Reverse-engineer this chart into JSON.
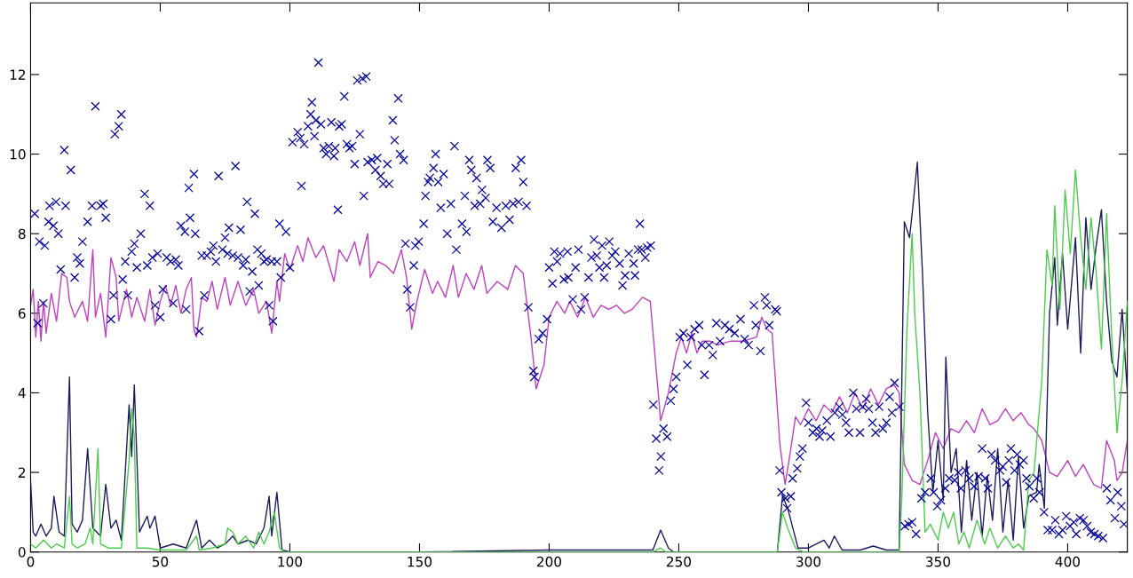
{
  "chart_data": {
    "type": "line",
    "xlim": [
      0,
      423
    ],
    "ylim": [
      0,
      13.8
    ],
    "xticks": [
      0,
      50,
      100,
      150,
      200,
      250,
      300,
      350,
      400
    ],
    "yticks": [
      0,
      2,
      4,
      6,
      8,
      10,
      12
    ],
    "grid": false,
    "series": [
      {
        "type": "line",
        "color": "#bf40bf",
        "marker": "none",
        "x": [
          0,
          1,
          2,
          3,
          4,
          5,
          6,
          8,
          10,
          12,
          14,
          15,
          17,
          20,
          22,
          24,
          25,
          27,
          29,
          31,
          33,
          34,
          37,
          39,
          41,
          44,
          46,
          48,
          50,
          52,
          54,
          56,
          58,
          60,
          62,
          63,
          64,
          66,
          68,
          70,
          72,
          75,
          77,
          80,
          83,
          86,
          88,
          91,
          93,
          95,
          96,
          98,
          100,
          103,
          105,
          107,
          110,
          113,
          117,
          119,
          122,
          125,
          127,
          130,
          131,
          134,
          137,
          140,
          143,
          145,
          147,
          149,
          152,
          155,
          157,
          160,
          163,
          165,
          168,
          171,
          174,
          176,
          180,
          184,
          187,
          190,
          193,
          195,
          198,
          200,
          203,
          206,
          208,
          211,
          214,
          217,
          220,
          223,
          226,
          229,
          232,
          236,
          239,
          243,
          246,
          249,
          251,
          253,
          255,
          257,
          259,
          262,
          265,
          270,
          275,
          280,
          282,
          284,
          286,
          289,
          291,
          293,
          295,
          297,
          300,
          303,
          306,
          309,
          312,
          315,
          318,
          321,
          324,
          327,
          330,
          333,
          335,
          337,
          340,
          343,
          346,
          349,
          352,
          355,
          358,
          361,
          364,
          367,
          370,
          373,
          376,
          379,
          382,
          385,
          387,
          390,
          393,
          396,
          400,
          403,
          406,
          410,
          413,
          415,
          418,
          419,
          421,
          423
        ],
        "values": [
          6.2,
          6.6,
          5.4,
          6.3,
          5.3,
          6.3,
          5.5,
          6.5,
          5.8,
          7.0,
          6.9,
          6.3,
          5.9,
          6.3,
          5.8,
          7.6,
          5.9,
          6.5,
          5.4,
          7.4,
          6.9,
          5.8,
          6.6,
          5.9,
          6.4,
          5.8,
          6.6,
          5.7,
          6.3,
          6.7,
          6.2,
          6.7,
          6.0,
          6.6,
          6.9,
          5.6,
          5.4,
          6.4,
          6.3,
          6.8,
          6.1,
          6.9,
          6.2,
          6.8,
          6.2,
          6.6,
          6.0,
          6.3,
          5.5,
          6.8,
          6.3,
          7.5,
          7.1,
          7.7,
          7.3,
          7.9,
          7.4,
          7.7,
          6.8,
          7.6,
          7.3,
          7.8,
          7.2,
          8.0,
          6.9,
          7.3,
          7.2,
          7.0,
          7.6,
          6.9,
          5.6,
          6.3,
          7.1,
          6.5,
          6.8,
          6.4,
          7.2,
          6.4,
          7.0,
          6.6,
          7.2,
          6.5,
          6.8,
          6.6,
          7.2,
          7.0,
          5.4,
          4.1,
          4.7,
          5.9,
          6.3,
          6.0,
          6.3,
          5.9,
          6.4,
          5.9,
          6.2,
          6.1,
          6.2,
          6.0,
          6.1,
          6.4,
          6.3,
          3.3,
          4.0,
          5.0,
          5.4,
          5.0,
          5.5,
          5.0,
          5.3,
          5.3,
          5.2,
          5.3,
          5.3,
          5.4,
          5.9,
          5.6,
          5.5,
          2.7,
          1.7,
          2.5,
          3.4,
          3.2,
          3.6,
          3.3,
          3.7,
          3.5,
          3.9,
          3.5,
          4.0,
          3.6,
          4.1,
          3.7,
          4.1,
          4.2,
          4.0,
          2.2,
          1.8,
          1.7,
          2.3,
          3.0,
          2.6,
          3.1,
          3.0,
          3.3,
          3.0,
          3.6,
          3.2,
          3.3,
          3.6,
          3.3,
          3.5,
          3.2,
          3.1,
          2.8,
          2.0,
          1.9,
          2.3,
          1.9,
          2.2,
          1.7,
          1.6,
          2.8,
          2.3,
          1.8,
          2.0,
          2.8
        ]
      },
      {
        "type": "line",
        "color": "#1c1c5c",
        "marker": "none",
        "x": [
          0,
          1,
          2,
          4,
          6,
          8,
          9,
          11,
          13,
          15,
          16,
          18,
          20,
          22,
          24,
          27,
          29,
          31,
          33,
          35,
          38,
          39,
          40,
          42,
          45,
          46,
          48,
          50,
          55,
          60,
          64,
          66,
          69,
          72,
          75,
          78,
          80,
          84,
          87,
          90,
          92,
          93,
          95,
          97,
          100,
          150,
          200,
          240,
          243,
          246,
          248,
          288,
          290,
          292,
          294,
          296,
          300,
          306,
          308,
          310,
          313,
          320,
          325,
          330,
          335,
          337,
          339,
          340,
          342,
          344,
          346,
          348,
          350,
          352,
          353,
          355,
          357,
          359,
          361,
          363,
          365,
          367,
          369,
          371,
          373,
          375,
          377,
          379,
          381,
          383,
          385,
          388,
          389,
          391,
          393,
          395,
          396,
          398,
          400,
          403,
          405,
          407,
          409,
          411,
          413,
          415,
          417,
          419,
          421,
          423
        ],
        "values": [
          1.8,
          0.5,
          0.4,
          0.7,
          0.4,
          0.6,
          1.4,
          0.5,
          0.4,
          4.4,
          0.7,
          0.5,
          0.8,
          2.6,
          0.6,
          0.4,
          1.7,
          0.6,
          0.8,
          0.3,
          3.7,
          2.4,
          4.2,
          0.5,
          0.9,
          0.6,
          0.9,
          0.1,
          0.2,
          0.1,
          0.8,
          0.1,
          0.3,
          0.1,
          0.2,
          0.4,
          0.2,
          0.3,
          0.2,
          0.6,
          1.4,
          0.4,
          1.5,
          0.05,
          0,
          0,
          0.05,
          0.05,
          0.55,
          0.1,
          0,
          0,
          1.4,
          1.1,
          0.6,
          0.1,
          0.1,
          0.3,
          0.1,
          0.4,
          0.05,
          0.05,
          0.15,
          0.05,
          0.05,
          8.3,
          7.9,
          8.5,
          9.8,
          7.0,
          3.5,
          1.5,
          2.8,
          1.3,
          4.9,
          2.0,
          2.6,
          0.5,
          2.3,
          0.8,
          2.0,
          0.4,
          1.9,
          0.8,
          2.6,
          0.5,
          1.8,
          0.3,
          2.4,
          0.6,
          1.4,
          1.5,
          2.2,
          1.1,
          6.0,
          7.4,
          5.7,
          7.5,
          5.6,
          7.9,
          5.0,
          8.4,
          6.6,
          7.7,
          8.6,
          6.3,
          4.8,
          4.4,
          6.1,
          4.0
        ]
      },
      {
        "type": "line",
        "color": "#4ccc4c",
        "marker": "none",
        "x": [
          0,
          2,
          5,
          8,
          10,
          13,
          15,
          16,
          18,
          21,
          23,
          24,
          26,
          27,
          30,
          35,
          38,
          39,
          40,
          41,
          45,
          50,
          60,
          64,
          65,
          70,
          75,
          76,
          78,
          80,
          83,
          86,
          88,
          90,
          92,
          94,
          96,
          98,
          150,
          200,
          240,
          243,
          245,
          288,
          290,
          292,
          295,
          298,
          335,
          336,
          338,
          340,
          341,
          343,
          345,
          347,
          350,
          352,
          354,
          356,
          358,
          360,
          362,
          365,
          368,
          370,
          373,
          376,
          379,
          381,
          383,
          385,
          387,
          390,
          392,
          394,
          395,
          397,
          399,
          401,
          403,
          405,
          407,
          409,
          411,
          413,
          415,
          417,
          419,
          421,
          423
        ],
        "values": [
          0.2,
          0.1,
          0.3,
          0.1,
          0.2,
          0.1,
          1.4,
          0.2,
          0.1,
          0.2,
          0.6,
          0.2,
          2.6,
          0.2,
          0.1,
          0.1,
          2.3,
          3.6,
          2.9,
          0.1,
          0.1,
          0.05,
          0.05,
          0.4,
          0.05,
          0.1,
          0.2,
          0.6,
          0.5,
          0.2,
          0.4,
          0.1,
          0.5,
          0.2,
          0.5,
          1.0,
          0.1,
          0,
          0,
          0,
          0,
          0.1,
          0,
          0,
          1.0,
          0.6,
          0.1,
          0,
          0,
          1.3,
          5.6,
          8.0,
          6.0,
          4.0,
          0.5,
          0.7,
          0.3,
          1.0,
          0.6,
          1.0,
          0.2,
          0.5,
          0.1,
          0.8,
          0.2,
          0.6,
          0.1,
          0.4,
          0.1,
          0.2,
          0.05,
          1.8,
          2.0,
          4.3,
          7.6,
          6.7,
          8.7,
          6.1,
          9.1,
          7.5,
          9.6,
          7.9,
          6.6,
          8.4,
          7.0,
          5.1,
          8.5,
          5.4,
          3.0,
          4.3,
          6.3
        ]
      },
      {
        "type": "scatter",
        "color": "#00009c",
        "marker": "cross",
        "x": [
          1.6,
          2.7,
          3.4,
          4.9,
          5.5,
          6.9,
          7.3,
          8.8,
          9.8,
          10.7,
          11.6,
          13,
          13.5,
          15.5,
          17,
          18,
          19,
          20,
          22,
          23.7,
          25,
          27,
          28,
          29,
          31,
          32,
          32.5,
          34,
          35,
          35.5,
          36.5,
          37.5,
          39,
          40,
          41,
          42.5,
          44,
          45,
          46,
          47,
          48,
          49,
          50,
          51,
          52.5,
          54,
          55,
          56,
          57,
          58,
          59.5,
          60,
          61.5,
          61,
          63,
          63.5,
          65,
          66,
          67,
          68,
          69.5,
          70.5,
          71.5,
          72.5,
          74,
          75,
          76,
          76.5,
          78,
          79,
          80,
          81,
          82,
          83,
          83.5,
          84.5,
          85.5,
          86.5,
          87.5,
          88,
          89,
          90,
          91,
          92,
          93,
          93.5,
          95,
          96,
          96.5,
          98.5,
          100,
          101,
          103,
          104,
          104.5,
          105.5,
          107,
          108,
          108.5,
          109.5,
          110,
          111,
          112,
          113,
          114,
          115,
          116,
          117,
          117.5,
          118.5,
          119,
          120,
          121,
          122,
          123,
          124,
          125,
          126,
          127,
          128,
          128.5,
          129.5,
          130,
          131.6,
          133.7,
          133,
          135,
          136,
          137.6,
          138.3,
          139.7,
          140.4,
          141.8,
          142.5,
          143.9,
          144.6,
          145.3,
          146.4,
          147.8,
          148.4,
          149.7,
          151.6,
          152.3,
          153.3,
          154,
          155.4,
          156.2,
          157.2,
          158.2,
          159.3,
          160.7,
          162.1,
          163.5,
          164.2,
          166.4,
          167.5,
          168.1,
          169.2,
          170,
          171.3,
          172,
          173.4,
          174.1,
          175.5,
          176.2,
          177.3,
          178.3,
          179.7,
          181.6,
          183.3,
          184.7,
          186.1,
          187.1,
          188.2,
          189.2,
          190,
          191.3,
          192,
          193.9,
          194.3,
          196,
          197.5,
          199.2,
          200,
          201.3,
          202,
          203.1,
          204.2,
          205.7,
          207.4,
          207.1,
          209.1,
          210.2,
          211.3,
          212.3,
          213.7,
          215.2,
          216.3,
          217.3,
          218.4,
          219.4,
          220.4,
          221.2,
          222.2,
          223.2,
          224.3,
          225.5,
          227.2,
          228.3,
          229.3,
          230.7,
          232.6,
          233.1,
          234.3,
          235,
          235.7,
          237.1,
          237.8,
          239.2,
          240.2,
          241.3,
          242.4,
          243.1,
          244.1,
          245.5,
          246.9,
          248,
          249,
          250.4,
          251.8,
          253.3,
          254.7,
          256.1,
          257.9,
          258.9,
          259.9,
          261.7,
          263.1,
          264.5,
          265.9,
          267.8,
          269.5,
          271.6,
          273.8,
          275.4,
          276.9,
          279,
          279.7,
          281.5,
          283.2,
          283.9,
          284.9,
          287.2,
          287.8,
          288.9,
          289.6,
          291.1,
          291.8,
          293.2,
          293.9,
          295.7,
          296.7,
          297.7,
          299.1,
          300,
          301.7,
          303.1,
          304.3,
          305.3,
          307.1,
          308.5,
          310.2,
          311.9,
          313.1,
          314.5,
          315.6,
          317.3,
          318.5,
          319.9,
          320.9,
          322.3,
          323.3,
          324.7,
          325.9,
          327.3,
          328.7,
          330.1,
          331.3,
          332.2,
          333.2,
          335.1,
          337.2,
          338.6,
          340,
          341.5,
          343.6,
          345,
          347.2,
          348.3,
          349.7,
          351.1,
          352.8,
          354.3,
          356.4,
          357.8,
          358.8,
          360.6,
          362.1,
          363.9,
          365.6,
          367,
          368.2,
          369.2,
          370.6,
          372,
          373.9,
          374.9,
          376.3,
          377.3,
          378.1,
          379.5,
          380.5,
          381.5,
          383,
          384.1,
          385.2,
          386.9,
          388.1,
          389.1,
          390.9,
          392.3,
          394,
          395.2,
          396.6,
          398,
          399.4,
          400.9,
          402.3,
          403.3,
          404.7,
          406.1,
          407.5,
          408.9,
          410.3,
          411.8,
          413.6,
          415.1,
          416.5,
          418.2,
          419.3,
          420.7,
          421.7
        ],
        "values": [
          8.5,
          5.75,
          7.8,
          6.25,
          7.7,
          8.3,
          8.7,
          8.2,
          8.8,
          8.0,
          7.1,
          10.1,
          8.7,
          9.6,
          6.9,
          7.4,
          7.25,
          7.8,
          8.3,
          8.7,
          11.2,
          8.7,
          8.75,
          8.4,
          5.85,
          6.45,
          10.5,
          10.7,
          11.0,
          6.85,
          7.3,
          6.45,
          7.55,
          7.75,
          7.15,
          8.0,
          9.0,
          7.2,
          8.7,
          7.4,
          6.2,
          7.5,
          5.9,
          6.6,
          7.4,
          7.3,
          6.25,
          7.35,
          7.2,
          8.2,
          8.05,
          6.1,
          8.4,
          9.15,
          9.5,
          8.0,
          5.55,
          7.45,
          6.45,
          7.45,
          7.55,
          7.7,
          7.3,
          9.45,
          7.6,
          7.9,
          7.5,
          8.15,
          7.45,
          9.7,
          7.4,
          8.1,
          7.2,
          7.35,
          8.8,
          6.55,
          7.05,
          8.5,
          7.6,
          6.7,
          7.5,
          7.3,
          7.35,
          6.2,
          7.3,
          5.8,
          7.3,
          8.25,
          6.9,
          8.05,
          7.15,
          10.3,
          10.55,
          10.4,
          9.2,
          10.25,
          10.7,
          11.0,
          11.3,
          10.45,
          10.85,
          12.3,
          10.75,
          10.15,
          10.0,
          10.2,
          10.8,
          9.95,
          10.15,
          8.6,
          10.7,
          10.75,
          11.45,
          10.25,
          10.15,
          10.2,
          9.75,
          11.85,
          10.5,
          11.9,
          8.95,
          11.95,
          9.8,
          9.85,
          9.9,
          9.6,
          9.45,
          9.25,
          9.75,
          9.25,
          10.85,
          10.35,
          11.4,
          10.0,
          9.85,
          7.75,
          6.6,
          6.15,
          7.2,
          7.7,
          7.8,
          8.25,
          8.95,
          9.3,
          9.4,
          9.65,
          10.0,
          9.3,
          8.65,
          9.5,
          8.0,
          8.75,
          10.2,
          7.6,
          8.25,
          8.95,
          8.05,
          9.85,
          9.6,
          8.7,
          9.4,
          8.75,
          9.1,
          8.9,
          9.85,
          9.65,
          8.3,
          8.65,
          8.15,
          8.7,
          8.35,
          8.75,
          9.65,
          8.8,
          9.85,
          9.3,
          8.7,
          6.15,
          4.55,
          4.4,
          5.35,
          5.5,
          5.85,
          7.15,
          6.75,
          7.55,
          7.3,
          7.5,
          6.85,
          6.9,
          7.55,
          6.35,
          7.15,
          7.6,
          6.1,
          6.4,
          6.9,
          7.4,
          7.85,
          7.45,
          7.15,
          7.7,
          6.9,
          7.2,
          7.8,
          7.45,
          7.55,
          7.25,
          6.7,
          6.95,
          7.5,
          7.25,
          6.95,
          7.6,
          8.25,
          7.6,
          7.4,
          7.65,
          7.7,
          3.7,
          2.85,
          2.05,
          2.4,
          3.1,
          2.9,
          3.8,
          4.1,
          4.4,
          5.4,
          5.5,
          4.7,
          5.4,
          5.6,
          5.7,
          5.2,
          4.45,
          5.2,
          4.95,
          5.75,
          5.3,
          5.7,
          5.6,
          5.5,
          5.85,
          5.35,
          5.2,
          6.2,
          5.7,
          5.05,
          6.4,
          6.2,
          5.7,
          6.1,
          6.05,
          2.05,
          1.5,
          1.35,
          1.1,
          1.4,
          1.85,
          2.1,
          2.4,
          2.6,
          3.75,
          3.25,
          3.0,
          3.1,
          2.9,
          3.05,
          3.3,
          2.9,
          3.5,
          3.65,
          3.45,
          3.25,
          3.0,
          4.0,
          3.6,
          3.0,
          3.65,
          3.85,
          3.6,
          3.25,
          3.0,
          3.65,
          3.1,
          3.25,
          3.9,
          3.5,
          4.25,
          3.65,
          0.65,
          0.7,
          0.75,
          0.45,
          1.35,
          1.5,
          1.85,
          1.5,
          1.15,
          1.3,
          1.6,
          1.85,
          1.8,
          2.0,
          1.6,
          2.05,
          1.85,
          1.65,
          1.9,
          2.6,
          1.85,
          1.6,
          2.45,
          2.3,
          2.05,
          2.15,
          1.75,
          2.3,
          2.6,
          2.05,
          2.45,
          2.2,
          2.3,
          1.85,
          1.65,
          1.35,
          1.85,
          1.5,
          1.0,
          0.55,
          0.55,
          0.8,
          0.45,
          0.55,
          0.9,
          0.65,
          0.75,
          0.45,
          0.85,
          0.8,
          0.65,
          0.5,
          0.45,
          0.4,
          0.35,
          1.6,
          1.3,
          0.85,
          1.5,
          1.15,
          0.7
        ]
      }
    ]
  }
}
